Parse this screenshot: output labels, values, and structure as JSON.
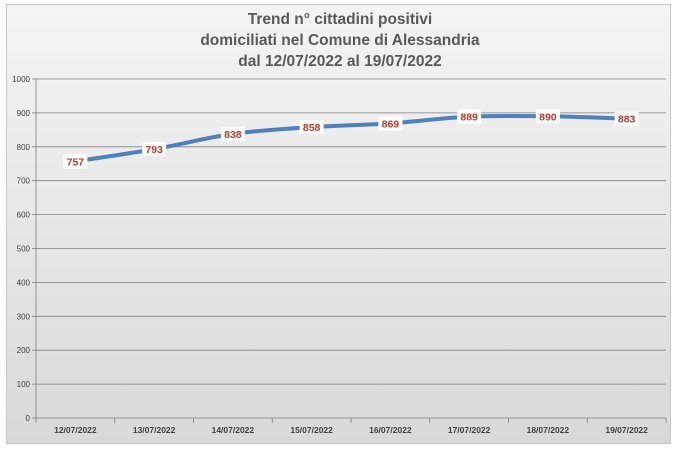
{
  "chart_data": {
    "type": "line",
    "title_lines": [
      "Trend n° cittadini positivi",
      "domiciliati nel Comune di Alessandria",
      "dal 12/07/2022 al 19/07/2022"
    ],
    "categories": [
      "12/07/2022",
      "13/07/2022",
      "14/07/2022",
      "15/07/2022",
      "16/07/2022",
      "17/07/2022",
      "18/07/2022",
      "19/07/2022"
    ],
    "values": [
      757,
      793,
      838,
      858,
      869,
      889,
      890,
      883
    ],
    "ylim": [
      0,
      1000
    ],
    "yticks": [
      "0",
      "100",
      "200",
      "300",
      "400",
      "500",
      "600",
      "700",
      "800",
      "900",
      "1000"
    ],
    "grid": true,
    "legend": "none",
    "line_color": "#4f81bd",
    "label_color": "#c0392b"
  }
}
